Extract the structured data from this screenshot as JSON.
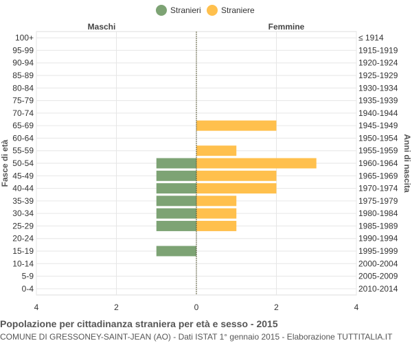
{
  "chart_data": {
    "type": "bar",
    "orientation": "horizontal-pyramid",
    "title": "Popolazione per cittadinanza straniera per età e sesso - 2015",
    "subtitle": "COMUNE DI GRESSONEY-SAINT-JEAN (AO) - Dati ISTAT 1° gennaio 2015 - Elaborazione TUTTITALIA.IT",
    "left_title": "Maschi",
    "right_title": "Femmine",
    "ylabel": "Fasce di età",
    "ylabel_right": "Anni di nascita",
    "age_groups": [
      "100+",
      "95-99",
      "90-94",
      "85-89",
      "80-84",
      "75-79",
      "70-74",
      "65-69",
      "60-64",
      "55-59",
      "50-54",
      "45-49",
      "40-44",
      "35-39",
      "30-34",
      "25-29",
      "20-24",
      "15-19",
      "10-14",
      "5-9",
      "0-4"
    ],
    "birth_years": [
      "≤ 1914",
      "1915-1919",
      "1920-1924",
      "1925-1929",
      "1930-1934",
      "1935-1939",
      "1940-1944",
      "1945-1949",
      "1950-1954",
      "1955-1959",
      "1960-1964",
      "1965-1969",
      "1970-1974",
      "1975-1979",
      "1980-1984",
      "1985-1989",
      "1990-1994",
      "1995-1999",
      "2000-2004",
      "2005-2009",
      "2010-2014"
    ],
    "series": [
      {
        "name": "Stranieri",
        "color": "#7da374",
        "values": [
          0,
          0,
          0,
          0,
          0,
          0,
          0,
          0,
          0,
          0,
          1,
          1,
          1,
          1,
          1,
          1,
          0,
          1,
          0,
          0,
          0
        ]
      },
      {
        "name": "Straniere",
        "color": "#ffc04d",
        "values": [
          0,
          0,
          0,
          0,
          0,
          0,
          0,
          2,
          0,
          1,
          3,
          2,
          2,
          1,
          1,
          1,
          0,
          0,
          0,
          0,
          0
        ]
      }
    ],
    "xlim": [
      -4,
      4
    ],
    "x_ticks": [
      -4,
      -2,
      0,
      2,
      4
    ],
    "x_tick_labels": [
      "4",
      "2",
      "0",
      "2",
      "4"
    ],
    "legend_position": "top-center",
    "grid": true
  }
}
